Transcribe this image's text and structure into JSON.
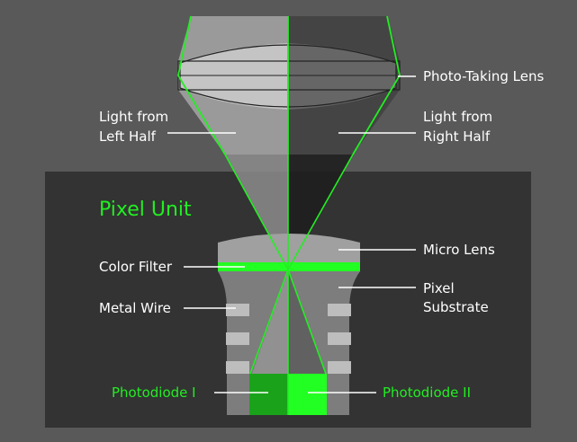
{
  "colors": {
    "background": "#595959",
    "panel": "#333333",
    "light_left": "#a6a6a6",
    "light_right": "#404040",
    "ray_green": "#22ee22",
    "photodiode_left": "#1aa31a",
    "photodiode_right": "#22ff22"
  },
  "labels": {
    "photo_taking_lens": "Photo-Taking Lens",
    "light_left_line1": "Light from",
    "light_left_line2": "Left Half",
    "light_right_line1": "Light from",
    "light_right_line2": "Right Half",
    "pixel_unit": "Pixel Unit",
    "micro_lens": "Micro Lens",
    "color_filter": "Color Filter",
    "metal_wire": "Metal Wire",
    "pixel_substrate_line1": "Pixel",
    "pixel_substrate_line2": "Substrate",
    "photodiode_1": "Photodiode I",
    "photodiode_2": "Photodiode II"
  }
}
